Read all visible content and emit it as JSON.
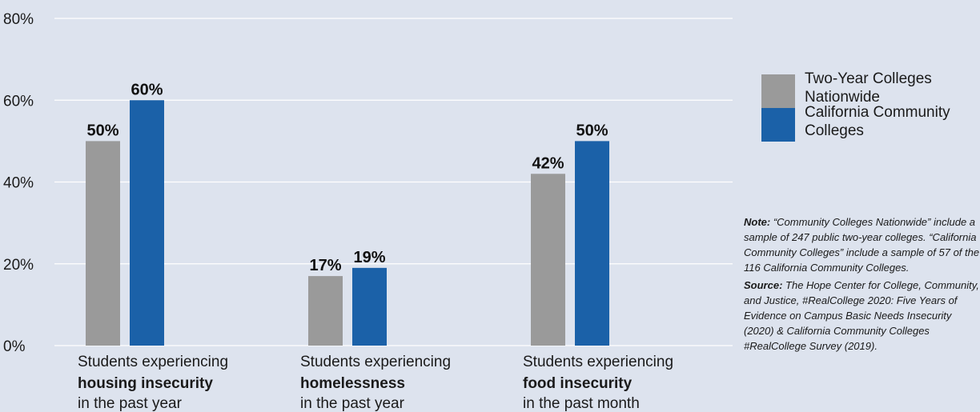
{
  "colors": {
    "two_year": "#9a9a9a",
    "california": "#1b61a8",
    "grid": "#ffffff",
    "background": "#dde3ee"
  },
  "chart_data": {
    "type": "bar",
    "ylim": [
      0,
      80
    ],
    "yticks": [
      "0%",
      "20%",
      "40%",
      "60%",
      "80%"
    ],
    "ytick_values": [
      0,
      20,
      40,
      60,
      80
    ],
    "grid": true,
    "categories": [
      {
        "line1": "Students experiencing",
        "line2": "housing insecurity",
        "line3": "in the past year"
      },
      {
        "line1": "Students experiencing",
        "line2": "homelessness",
        "line3": "in the past year"
      },
      {
        "line1": "Students experiencing",
        "line2": "food insecurity",
        "line3": "in the past month"
      }
    ],
    "series": [
      {
        "name": "Two-Year Colleges Nationwide",
        "values": [
          50,
          17,
          42
        ],
        "labels": [
          "50%",
          "17%",
          "42%"
        ]
      },
      {
        "name": "California Community Colleges",
        "values": [
          60,
          19,
          50
        ],
        "labels": [
          "60%",
          "19%",
          "50%"
        ]
      }
    ],
    "legend_position": "right"
  },
  "legend": [
    {
      "label": "Two-Year Colleges Nationwide",
      "color": "#9a9a9a"
    },
    {
      "label": "California Community Colleges",
      "color": "#1b61a8"
    }
  ],
  "note": {
    "label": "Note:",
    "text": "“Community Colleges Nationwide” include a sample of 247 public two-year colleges. “California Community Colleges” include a sample of 57 of the 116 California Community Colleges."
  },
  "source": {
    "label": "Source:",
    "text": "The Hope Center for College, Community, and Justice, #RealCollege 2020: Five Years of Evidence on Campus Basic Needs Insecurity (2020) & California Community Colleges #RealCollege Survey (2019)."
  }
}
